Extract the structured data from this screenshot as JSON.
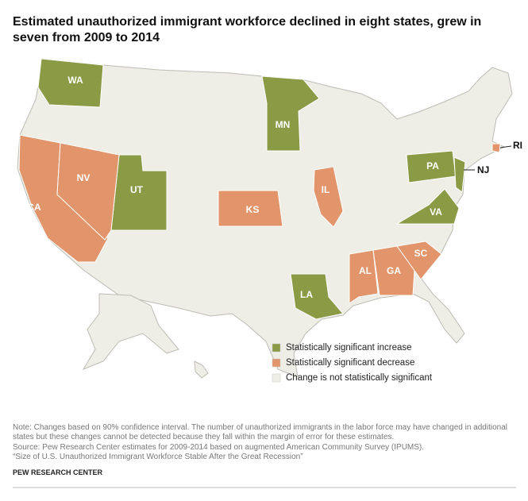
{
  "title": [
    "Estimated unauthorized immigrant workforce declined in eight states, grew in",
    "seven from 2009 to 2014"
  ],
  "legend": [
    {
      "label": "Statistically significant increase",
      "color": "#8a9a45",
      "states": [
        "WA",
        "MN",
        "UT",
        "PA",
        "NJ",
        "VA",
        "LA"
      ]
    },
    {
      "label": "Statistically significant decrease",
      "color": "#e2956b",
      "states": [
        "CA",
        "NV",
        "KS",
        "IL",
        "AL",
        "GA",
        "SC",
        "RI"
      ]
    },
    {
      "label": "Change is not statistically significant",
      "color": "#eeede6"
    }
  ],
  "note": [
    "Note: Changes based on 90% confidence interval. The number of unauthorized immigrants in the labor force may have changed in additional",
    "states but these changes cannot be detected because they fall within the margin of error for these estimates."
  ],
  "source": [
    "Source: Pew Research Center estimates for 2009-2014 based on augmented American Community Survey (IPUMS).",
    "“Size of U.S. Unauthorized Immigrant Workforce Stable After the Great Recession”"
  ],
  "footer": "PEW RESEARCH CENTER"
}
